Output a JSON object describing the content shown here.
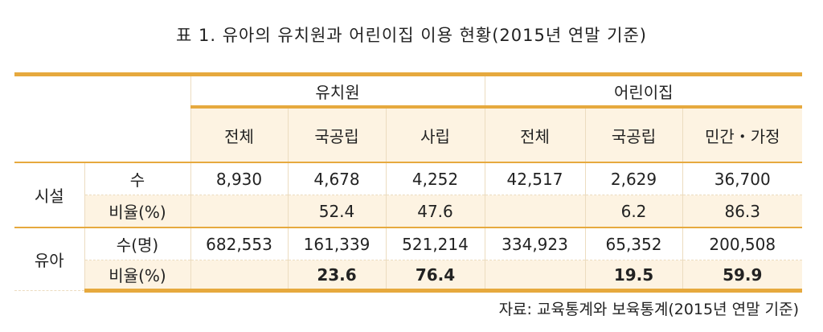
{
  "title": "표 1. 유아의 유치원과 어린이집 이용 현황(2015년 연말 기준)",
  "table": {
    "groups": [
      "유치원",
      "어린이집"
    ],
    "columns": [
      "전체",
      "국공립",
      "사립",
      "전체",
      "국공립",
      "민간・가정"
    ],
    "sections": [
      {
        "label": "시설",
        "rows": [
          {
            "label": "수",
            "cells": [
              "8,930",
              "4,678",
              "4,252",
              "42,517",
              "2,629",
              "36,700"
            ]
          },
          {
            "label": "비율(%)",
            "cells": [
              null,
              "52.4",
              "47.6",
              null,
              "6.2",
              "86.3"
            ]
          }
        ]
      },
      {
        "label": "유아",
        "rows": [
          {
            "label": "수(명)",
            "cells": [
              "682,553",
              "161,339",
              "521,214",
              "334,923",
              "65,352",
              "200,508"
            ]
          },
          {
            "label": "비율(%)",
            "cells": [
              null,
              "23.6",
              "76.4",
              null,
              "19.5",
              "59.9"
            ],
            "bold": true
          }
        ]
      }
    ]
  },
  "source": "자료: 교육통계와 보육통계(2015년 연말 기준)"
}
